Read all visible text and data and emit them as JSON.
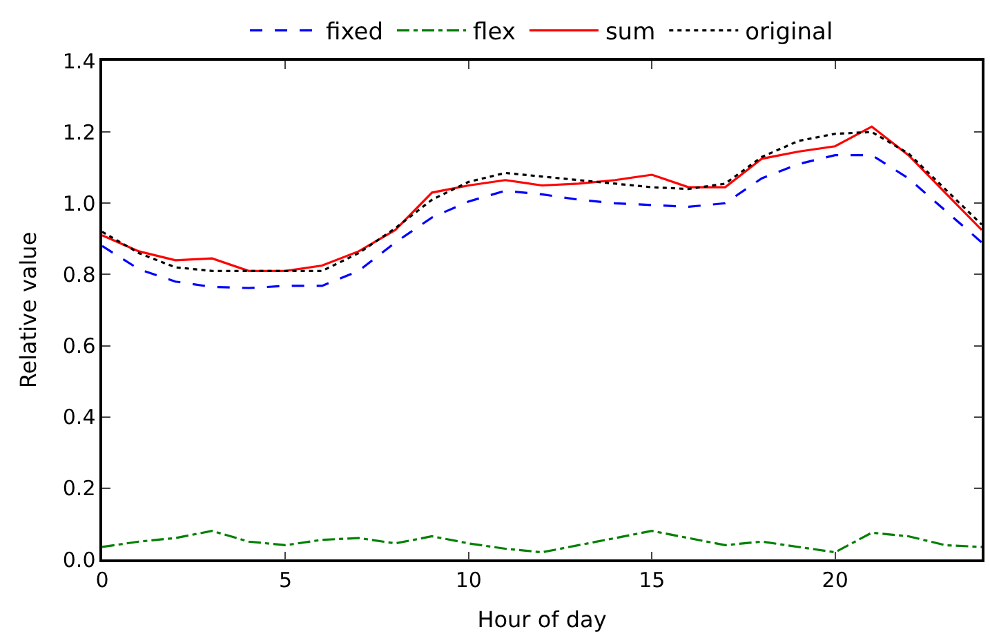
{
  "chart_data": {
    "type": "line",
    "xlabel": "Hour of day",
    "ylabel": "Relative value",
    "x": [
      0,
      1,
      2,
      3,
      4,
      5,
      6,
      7,
      8,
      9,
      10,
      11,
      12,
      13,
      14,
      15,
      16,
      17,
      18,
      19,
      20,
      21,
      22,
      23,
      24
    ],
    "series": [
      {
        "name": "fixed",
        "color": "#0000ff",
        "line_style": "dashed",
        "values": [
          0.88,
          0.815,
          0.78,
          0.765,
          0.762,
          0.768,
          0.768,
          0.81,
          0.89,
          0.96,
          1.005,
          1.035,
          1.025,
          1.01,
          1.0,
          0.995,
          0.99,
          1.0,
          1.07,
          1.11,
          1.135,
          1.135,
          1.07,
          0.98,
          0.89
        ]
      },
      {
        "name": "flex",
        "color": "#008000",
        "line_style": "dashdot",
        "values": [
          0.035,
          0.05,
          0.06,
          0.08,
          0.05,
          0.04,
          0.055,
          0.06,
          0.045,
          0.065,
          0.045,
          0.03,
          0.02,
          0.04,
          0.06,
          0.08,
          0.06,
          0.04,
          0.05,
          0.035,
          0.02,
          0.075,
          0.065,
          0.04,
          0.035
        ]
      },
      {
        "name": "sum",
        "color": "#ff0000",
        "line_style": "solid",
        "values": [
          0.91,
          0.865,
          0.84,
          0.845,
          0.81,
          0.81,
          0.825,
          0.865,
          0.925,
          1.03,
          1.05,
          1.065,
          1.05,
          1.055,
          1.065,
          1.08,
          1.045,
          1.045,
          1.125,
          1.145,
          1.16,
          1.215,
          1.135,
          1.03,
          0.925
        ]
      },
      {
        "name": "original",
        "color": "#000000",
        "line_style": "dotted",
        "values": [
          0.92,
          0.86,
          0.82,
          0.81,
          0.81,
          0.81,
          0.81,
          0.86,
          0.93,
          1.01,
          1.06,
          1.085,
          1.075,
          1.065,
          1.055,
          1.045,
          1.04,
          1.055,
          1.13,
          1.175,
          1.195,
          1.2,
          1.14,
          1.04,
          0.94
        ]
      }
    ],
    "xlim": [
      0,
      24
    ],
    "xticks": [
      0,
      5,
      10,
      15,
      20
    ],
    "ylim": [
      0,
      1.4
    ],
    "yticks": [
      {
        "value": 0,
        "label": "0.0"
      },
      {
        "value": 0.2,
        "label": "0.2"
      },
      {
        "value": 0.4,
        "label": "0.4"
      },
      {
        "value": 0.6,
        "label": "0.6"
      },
      {
        "value": 0.8,
        "label": "0.8"
      },
      {
        "value": 1.0,
        "label": "1.0"
      },
      {
        "value": 1.2,
        "label": "1.2"
      },
      {
        "value": 1.4,
        "label": "1.4"
      }
    ],
    "legend": "top",
    "marker": "none"
  }
}
